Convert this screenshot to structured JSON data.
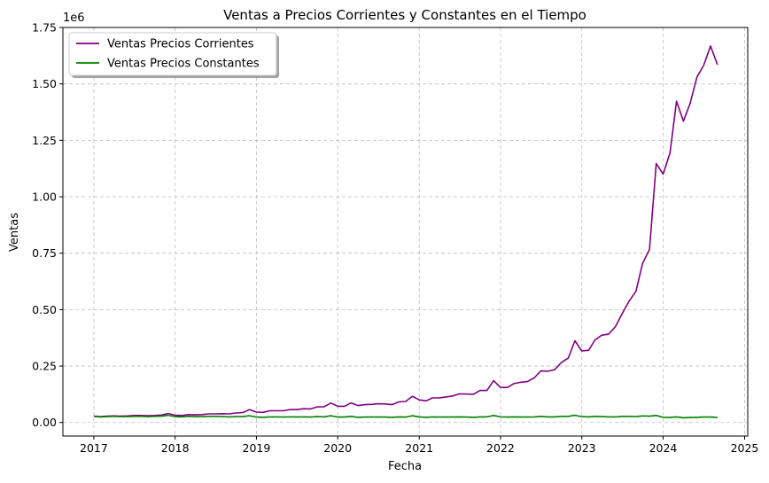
{
  "chart_data": {
    "type": "line",
    "title": "Ventas a Precios Corrientes y Constantes en el Tiempo",
    "xlabel": "Fecha",
    "ylabel": "Ventas",
    "y_offset_label": "1e6",
    "xlim": [
      "2016-08-15",
      "2025-01-15"
    ],
    "ylim": [
      -60000,
      1750000
    ],
    "y_ticks": [
      0,
      250000,
      500000,
      750000,
      1000000,
      1250000,
      1500000,
      1750000
    ],
    "y_tick_labels": [
      "0.00",
      "0.25",
      "0.50",
      "0.75",
      "1.00",
      "1.25",
      "1.50",
      "1.75"
    ],
    "x_ticks": [
      "2017-01-01",
      "2018-01-01",
      "2019-01-01",
      "2020-01-01",
      "2021-01-01",
      "2022-01-01",
      "2023-01-01",
      "2024-01-01",
      "2025-01-01"
    ],
    "x_tick_labels": [
      "2017",
      "2018",
      "2019",
      "2020",
      "2021",
      "2022",
      "2023",
      "2024",
      "2025"
    ],
    "grid": true,
    "legend_position": "top-left",
    "x": [
      "2017-01",
      "2017-02",
      "2017-03",
      "2017-04",
      "2017-05",
      "2017-06",
      "2017-07",
      "2017-08",
      "2017-09",
      "2017-10",
      "2017-11",
      "2017-12",
      "2018-01",
      "2018-02",
      "2018-03",
      "2018-04",
      "2018-05",
      "2018-06",
      "2018-07",
      "2018-08",
      "2018-09",
      "2018-10",
      "2018-11",
      "2018-12",
      "2019-01",
      "2019-02",
      "2019-03",
      "2019-04",
      "2019-05",
      "2019-06",
      "2019-07",
      "2019-08",
      "2019-09",
      "2019-10",
      "2019-11",
      "2019-12",
      "2020-01",
      "2020-02",
      "2020-03",
      "2020-04",
      "2020-05",
      "2020-06",
      "2020-07",
      "2020-08",
      "2020-09",
      "2020-10",
      "2020-11",
      "2020-12",
      "2021-01",
      "2021-02",
      "2021-03",
      "2021-04",
      "2021-05",
      "2021-06",
      "2021-07",
      "2021-08",
      "2021-09",
      "2021-10",
      "2021-11",
      "2021-12",
      "2022-01",
      "2022-02",
      "2022-03",
      "2022-04",
      "2022-05",
      "2022-06",
      "2022-07",
      "2022-08",
      "2022-09",
      "2022-10",
      "2022-11",
      "2022-12",
      "2023-01",
      "2023-02",
      "2023-03",
      "2023-04",
      "2023-05",
      "2023-06",
      "2023-07",
      "2023-08",
      "2023-09",
      "2023-10",
      "2023-11",
      "2023-12",
      "2024-01",
      "2024-02",
      "2024-03",
      "2024-04",
      "2024-05",
      "2024-06",
      "2024-07",
      "2024-08",
      "2024-09"
    ],
    "series": [
      {
        "name": "Ventas Precios Corrientes",
        "color": "#800080",
        "values": [
          28000,
          26000,
          28000,
          29000,
          28000,
          29000,
          31000,
          31000,
          30000,
          31000,
          33000,
          40000,
          32000,
          31000,
          35000,
          34000,
          35000,
          38000,
          38000,
          39000,
          38000,
          42000,
          44000,
          57000,
          46000,
          45000,
          52000,
          52000,
          52000,
          57000,
          57000,
          61000,
          60000,
          69000,
          70000,
          86000,
          72000,
          72000,
          87000,
          75000,
          79000,
          80000,
          83000,
          82000,
          79000,
          91000,
          93000,
          116000,
          100000,
          96000,
          109000,
          109000,
          113000,
          118000,
          127000,
          126000,
          125000,
          142000,
          142000,
          185000,
          155000,
          155000,
          172000,
          178000,
          181000,
          197000,
          229000,
          227000,
          234000,
          266000,
          285000,
          362000,
          317000,
          320000,
          366000,
          387000,
          391000,
          425000,
          482000,
          537000,
          581000,
          705000,
          766000,
          1147000,
          1100000,
          1195000,
          1423000,
          1335000,
          1413000,
          1531000,
          1581000,
          1668000,
          1585000
        ]
      },
      {
        "name": "Ventas Precios Constantes",
        "color": "#008000",
        "values": [
          27000,
          25000,
          26000,
          27000,
          26000,
          26000,
          27000,
          27000,
          26000,
          27000,
          28000,
          32000,
          26000,
          25000,
          27000,
          26000,
          26000,
          27000,
          27000,
          26000,
          25000,
          26000,
          26000,
          30000,
          24000,
          23000,
          25000,
          25000,
          24000,
          25000,
          25000,
          25000,
          24000,
          26000,
          25000,
          30000,
          24000,
          24000,
          27000,
          23000,
          24000,
          24000,
          24000,
          24000,
          23000,
          25000,
          24000,
          30000,
          25000,
          23000,
          25000,
          24000,
          24000,
          24000,
          25000,
          24000,
          23000,
          25000,
          25000,
          31000,
          25000,
          24000,
          25000,
          24000,
          24000,
          25000,
          27000,
          25000,
          25000,
          27000,
          27000,
          32000,
          26000,
          25000,
          27000,
          26000,
          25000,
          25000,
          27000,
          27000,
          26000,
          29000,
          28000,
          31000,
          23000,
          22000,
          25000,
          21000,
          22000,
          23000,
          24000,
          24000,
          22000
        ]
      }
    ]
  }
}
